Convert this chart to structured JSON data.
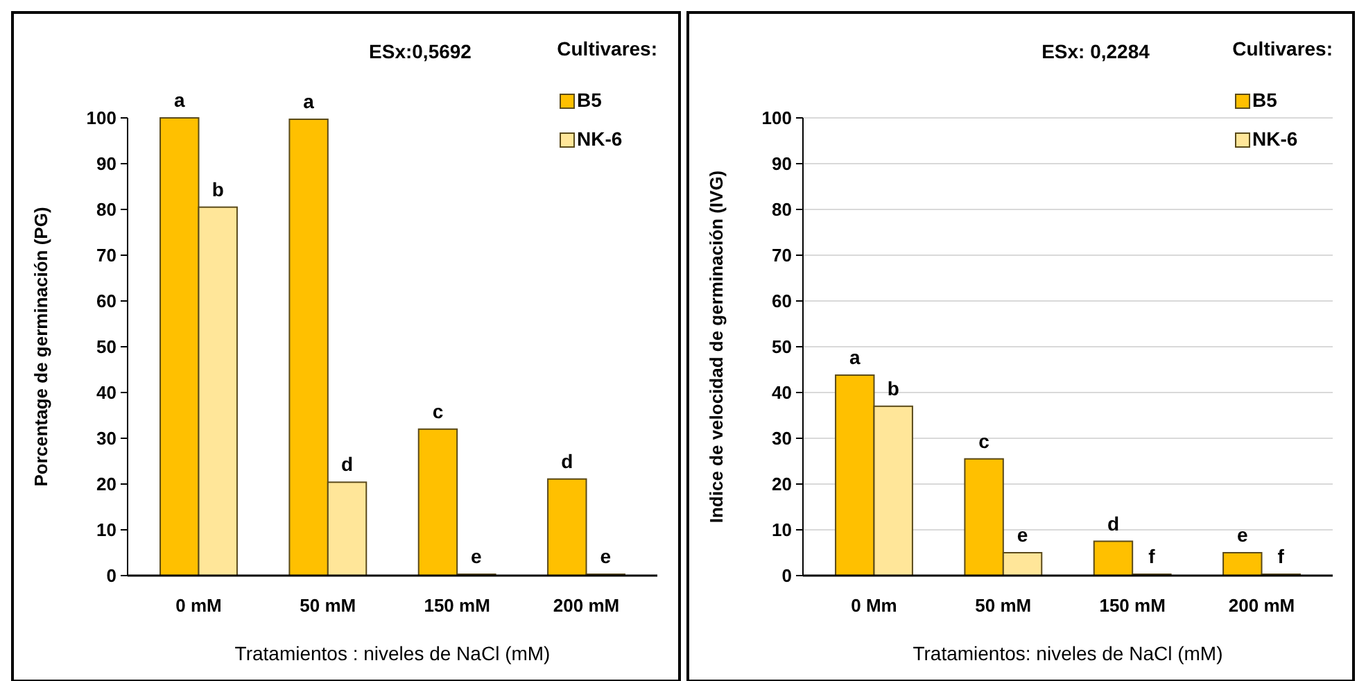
{
  "chart_data": [
    {
      "type": "bar",
      "xlabel": "Tratamientos : niveles de NaCl (mM)",
      "ylabel": "Porcentage de germinación  (PG)",
      "legend_title": "Cultivares:",
      "legend": "top right",
      "grid": false,
      "categories": [
        "0 mM",
        "50 mM",
        "150 mM",
        "200 mM"
      ],
      "series": [
        {
          "name": "B5",
          "color": "#ffc000",
          "values": [
            100,
            99.7,
            32,
            21.1
          ]
        },
        {
          "name": "NK-6",
          "color": "#ffe699",
          "values": [
            80.5,
            20.4,
            0.3,
            0.3
          ]
        }
      ],
      "ylim": [
        0,
        100
      ],
      "yticks": [
        0,
        10,
        20,
        30,
        40,
        50,
        60,
        70,
        80,
        90,
        100
      ],
      "annotations": [
        "ESx:0,5692",
        {
          "text": "a",
          "x": "0 mM",
          "y": 100
        },
        {
          "text": "b",
          "x": "0 mM",
          "y": 80.5
        },
        {
          "text": "a",
          "x": "50 mM",
          "y": 99.7
        },
        {
          "text": "d",
          "x": "50 mM",
          "y": 20.4
        },
        {
          "text": "c",
          "x": "150 mM",
          "y": 32
        },
        {
          "text": "e",
          "x": "150 mM",
          "y": 0.3
        },
        {
          "text": "d",
          "x": "200 mM",
          "y": 21.1
        },
        {
          "text": "e",
          "x": "200 mM",
          "y": 0.3
        }
      ]
    },
    {
      "type": "bar",
      "xlabel": "Tratamientos:  niveles de NaCl (mM)",
      "ylabel": "Indice de velocidad de germinación  (IVG)",
      "legend_title": "Cultivares:",
      "legend": "top right",
      "grid": "y",
      "categories": [
        "0 Mm",
        "50 mM",
        "150 mM",
        "200 mM"
      ],
      "series": [
        {
          "name": "B5",
          "color": "#ffc000",
          "values": [
            43.8,
            25.5,
            7.5,
            5
          ]
        },
        {
          "name": "NK-6",
          "color": "#ffe699",
          "values": [
            37,
            5,
            0.3,
            0.3
          ]
        }
      ],
      "ylim": [
        0,
        100
      ],
      "yticks": [
        0,
        10,
        20,
        30,
        40,
        50,
        60,
        70,
        80,
        90,
        100
      ],
      "annotations": [
        "ESx: 0,2284",
        {
          "text": "a",
          "x": "0 Mm",
          "y": 43.8
        },
        {
          "text": "b",
          "x": "0 Mm",
          "y": 37
        },
        {
          "text": "c",
          "x": "50 mM",
          "y": 25.5
        },
        {
          "text": "e",
          "x": "50 mM",
          "y": 5
        },
        {
          "text": "d",
          "x": "150 mM",
          "y": 7.5
        },
        {
          "text": "f",
          "x": "150 mM",
          "y": 0.3
        },
        {
          "text": "e",
          "x": "200 mM",
          "y": 5
        },
        {
          "text": "f",
          "x": "200 mM",
          "y": 0.3
        }
      ]
    }
  ]
}
